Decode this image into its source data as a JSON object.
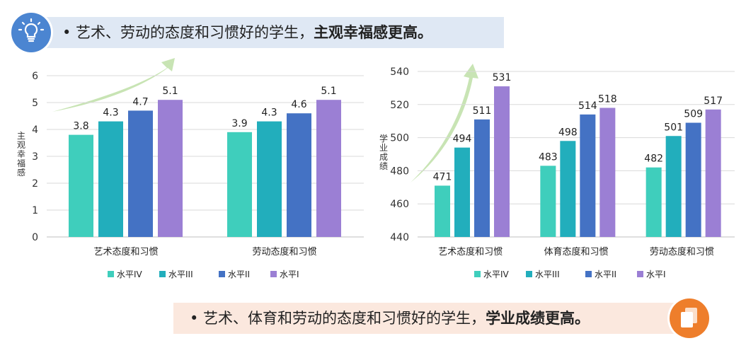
{
  "banners": {
    "top": {
      "normal": "• 艺术、劳动的态度和习惯好的学生，",
      "bold": "主观幸福感更高。"
    },
    "bottom": {
      "normal": "• 艺术、体育和劳动的态度和习惯好的学生，",
      "bold": "学业成绩更高。"
    }
  },
  "icons": {
    "top": "lightbulb-icon",
    "bottom": "documents-icon"
  },
  "colors": {
    "level4": "#3fcebc",
    "level3": "#22aebc",
    "level2": "#4472c4",
    "level1": "#9b7fd4",
    "arrow": "#c8e4b4",
    "top_banner": "#dfe8f4",
    "bottom_banner": "#fbe8de",
    "top_icon": "#4b85d1",
    "bottom_icon": "#ee7e2b"
  },
  "chart_data": [
    {
      "type": "bar",
      "categories": [
        "艺术态度和习惯",
        "劳动态度和习惯"
      ],
      "series": [
        {
          "name": "水平IV",
          "values": [
            3.8,
            3.9
          ]
        },
        {
          "name": "水平III",
          "values": [
            4.3,
            4.3
          ]
        },
        {
          "name": "水平II",
          "values": [
            4.7,
            4.6
          ]
        },
        {
          "name": "水平I",
          "values": [
            5.1,
            5.1
          ]
        }
      ],
      "data_labels": [
        [
          "3.8",
          "3.9"
        ],
        [
          "4.3",
          "4.3"
        ],
        [
          "4.7",
          "4.6"
        ],
        [
          "5.1",
          "5.1"
        ]
      ],
      "ylabel": "主观幸福感",
      "ylim": [
        0,
        6
      ],
      "yticks": [
        "0",
        "1",
        "2",
        "3",
        "4",
        "5",
        "6"
      ],
      "grid": true,
      "legend": "bottom"
    },
    {
      "type": "bar",
      "categories": [
        "艺术态度和习惯",
        "体育态度和习惯",
        "劳动态度和习惯"
      ],
      "series": [
        {
          "name": "水平IV",
          "values": [
            471,
            483,
            482
          ]
        },
        {
          "name": "水平III",
          "values": [
            494,
            498,
            501
          ]
        },
        {
          "name": "水平II",
          "values": [
            511,
            514,
            509
          ]
        },
        {
          "name": "水平I",
          "values": [
            531,
            518,
            517
          ]
        }
      ],
      "data_labels": [
        [
          "471",
          "483",
          "482"
        ],
        [
          "494",
          "498",
          "501"
        ],
        [
          "511",
          "514",
          "509"
        ],
        [
          "531",
          "518",
          "517"
        ]
      ],
      "ylabel": "学业成绩",
      "ylim": [
        440,
        540
      ],
      "yticks": [
        "440",
        "460",
        "480",
        "500",
        "520",
        "540"
      ],
      "grid": true,
      "legend": "bottom"
    }
  ]
}
